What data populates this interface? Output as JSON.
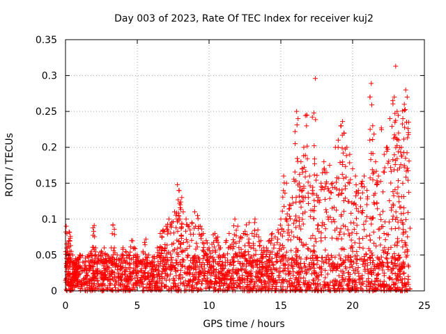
{
  "chart_data": {
    "type": "scatter",
    "title": "Day 003 of 2023, Rate Of TEC Index for receiver kuj2",
    "xlabel": "GPS time / hours",
    "ylabel": "ROTI / TECUs",
    "xlim": [
      0,
      25
    ],
    "ylim": [
      0,
      0.35
    ],
    "xticks": [
      0,
      5,
      10,
      15,
      20,
      25
    ],
    "xtick_labels": [
      "0",
      "5",
      "10",
      "15",
      "20",
      "25"
    ],
    "yticks": [
      0,
      0.05,
      0.1,
      0.15,
      0.2,
      0.25,
      0.3,
      0.35
    ],
    "ytick_labels": [
      "0",
      "0.05",
      "0.1",
      "0.15",
      "0.2",
      "0.25",
      "0.3",
      "0.35"
    ],
    "grid": true,
    "marker": "+",
    "color": "#ff0000",
    "series": [
      {
        "name": "ROTI",
        "x": [
          0.05,
          0.1,
          0.15,
          0.2,
          0.25,
          0.3,
          0.4,
          0.5,
          0.6,
          0.7,
          0.8,
          0.9,
          1.0,
          1.2,
          1.4,
          1.6,
          1.8,
          2.0,
          2.1,
          2.3,
          2.5,
          2.7,
          2.9,
          3.1,
          3.3,
          3.4,
          3.6,
          3.8,
          4.0,
          4.2,
          4.4,
          4.6,
          4.8,
          5.0,
          5.2,
          5.4,
          5.6,
          5.8,
          6.0,
          6.2,
          6.4,
          6.6,
          6.8,
          7.0,
          7.2,
          7.4,
          7.6,
          7.8,
          7.9,
          8.0,
          8.1,
          8.2,
          8.4,
          8.6,
          8.8,
          9.0,
          9.2,
          9.4,
          9.6,
          9.8,
          10.0,
          10.2,
          10.4,
          10.6,
          10.8,
          11.0,
          11.2,
          11.4,
          11.6,
          11.8,
          12.0,
          12.2,
          12.4,
          12.6,
          12.8,
          13.0,
          13.2,
          13.4,
          13.6,
          13.8,
          14.0,
          14.2,
          14.4,
          14.6,
          14.8,
          15.0,
          15.2,
          15.4,
          15.6,
          15.8,
          16.0,
          16.1,
          16.2,
          16.4,
          16.5,
          16.6,
          16.8,
          17.0,
          17.2,
          17.3,
          17.4,
          17.6,
          17.8,
          18.0,
          18.2,
          18.4,
          18.6,
          18.8,
          19.0,
          19.2,
          19.3,
          19.4,
          19.6,
          19.8,
          20.0,
          20.2,
          20.4,
          20.6,
          20.8,
          21.0,
          21.2,
          21.3,
          21.4,
          21.6,
          21.8,
          22.0,
          22.2,
          22.4,
          22.6,
          22.8,
          22.9,
          23.0,
          23.1,
          23.2,
          23.4,
          23.5,
          23.6,
          23.7,
          23.8,
          23.9
        ],
        "y": [
          0.09,
          0.08,
          0.06,
          0.045,
          0.082,
          0.07,
          0.055,
          0.05,
          0.04,
          0.045,
          0.035,
          0.04,
          0.05,
          0.04,
          0.035,
          0.05,
          0.055,
          0.091,
          0.06,
          0.05,
          0.055,
          0.06,
          0.05,
          0.045,
          0.092,
          0.06,
          0.05,
          0.045,
          0.06,
          0.055,
          0.05,
          0.07,
          0.06,
          0.05,
          0.04,
          0.055,
          0.072,
          0.05,
          0.04,
          0.035,
          0.06,
          0.08,
          0.085,
          0.09,
          0.1,
          0.095,
          0.11,
          0.148,
          0.14,
          0.12,
          0.13,
          0.11,
          0.1,
          0.09,
          0.095,
          0.11,
          0.105,
          0.09,
          0.08,
          0.07,
          0.06,
          0.065,
          0.08,
          0.075,
          0.06,
          0.05,
          0.07,
          0.08,
          0.065,
          0.1,
          0.09,
          0.075,
          0.08,
          0.092,
          0.095,
          0.08,
          0.1,
          0.085,
          0.07,
          0.06,
          0.06,
          0.07,
          0.08,
          0.075,
          0.085,
          0.1,
          0.16,
          0.15,
          0.12,
          0.13,
          0.205,
          0.25,
          0.24,
          0.18,
          0.14,
          0.2,
          0.245,
          0.16,
          0.14,
          0.248,
          0.296,
          0.13,
          0.15,
          0.18,
          0.165,
          0.175,
          0.15,
          0.2,
          0.21,
          0.23,
          0.236,
          0.22,
          0.2,
          0.19,
          0.17,
          0.16,
          0.14,
          0.15,
          0.16,
          0.14,
          0.21,
          0.289,
          0.23,
          0.18,
          0.16,
          0.227,
          0.19,
          0.2,
          0.24,
          0.265,
          0.27,
          0.313,
          0.25,
          0.22,
          0.2,
          0.24,
          0.26,
          0.28,
          0.27,
          0.235
        ]
      }
    ],
    "baseline_noise": {
      "min": 0.0,
      "max": 0.05,
      "note": "dense low-level ROTI cloud across the whole day"
    }
  }
}
